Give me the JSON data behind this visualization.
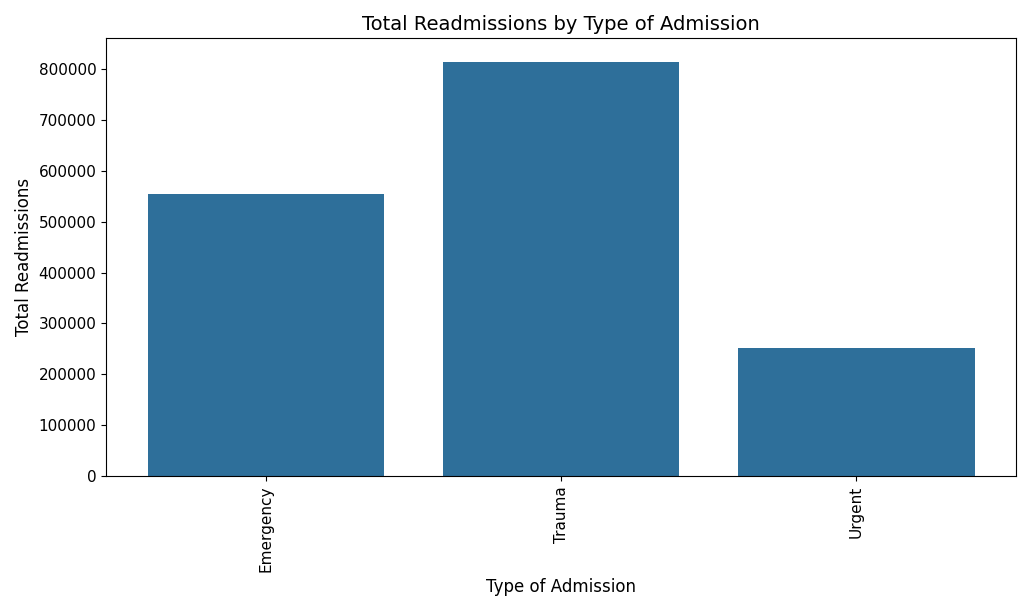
{
  "categories": [
    "Emergency",
    "Trauma",
    "Urgent"
  ],
  "values": [
    554000,
    814000,
    252000
  ],
  "bar_color": "#2e6f9a",
  "title": "Total Readmissions by Type of Admission",
  "xlabel": "Type of Admission",
  "ylabel": "Total Readmissions",
  "ylim": [
    0,
    860000
  ],
  "title_fontsize": 14,
  "label_fontsize": 12,
  "tick_fontsize": 11,
  "bar_width": 0.8
}
